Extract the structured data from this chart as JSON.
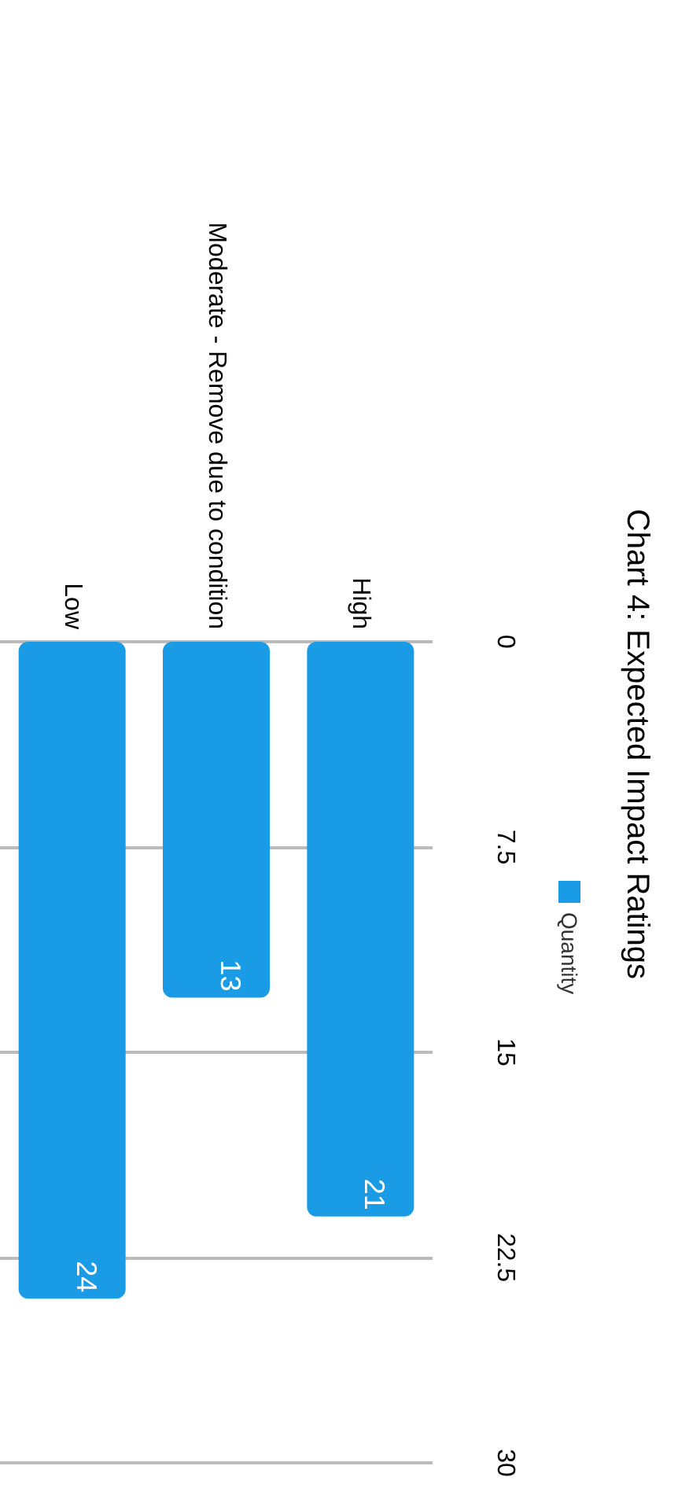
{
  "chart_data": {
    "type": "bar",
    "title": "Chart 4: Expected Impact Ratings",
    "categories": [
      "Low",
      "Moderate - Remove due to condition",
      "High"
    ],
    "series": [
      {
        "name": "Quantity",
        "color": "#1a9be6",
        "values": [
          24,
          13,
          21
        ]
      }
    ],
    "ylim": [
      30,
      0
    ],
    "yticks": [
      0,
      7.5,
      15,
      22.5,
      30
    ],
    "grid": "y",
    "legend": "right",
    "data_labels": true
  }
}
